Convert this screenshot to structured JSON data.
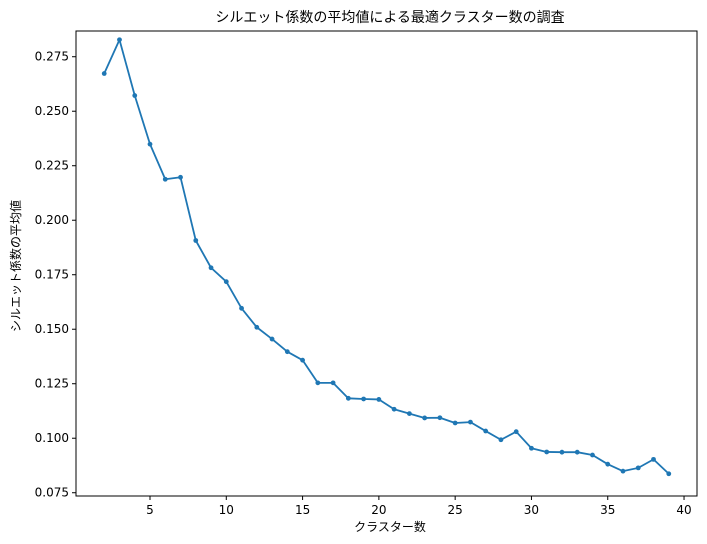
{
  "chart_data": {
    "type": "line",
    "title": "シルエット係数の平均値による最適クラスター数の調査",
    "xlabel": "クラスター数",
    "ylabel": "シルエット係数の平均値",
    "xlim": [
      0.15,
      40.85
    ],
    "ylim": [
      0.0735,
      0.2868
    ],
    "xticks": [
      5,
      10,
      15,
      20,
      25,
      30,
      35,
      40
    ],
    "yticks": [
      0.075,
      0.1,
      0.125,
      0.15,
      0.175,
      0.2,
      0.225,
      0.25,
      0.275
    ],
    "ytick_labels": [
      "0.075",
      "0.100",
      "0.125",
      "0.150",
      "0.175",
      "0.200",
      "0.225",
      "0.250",
      "0.275"
    ],
    "grid": false,
    "line_color": "#1f77b4",
    "x": [
      2,
      3,
      4,
      5,
      6,
      7,
      8,
      9,
      10,
      11,
      12,
      13,
      14,
      15,
      16,
      17,
      18,
      19,
      20,
      21,
      22,
      23,
      24,
      25,
      26,
      27,
      28,
      29,
      30,
      31,
      32,
      33,
      34,
      35,
      36,
      37,
      38,
      39
    ],
    "y": [
      0.2673,
      0.2828,
      0.2572,
      0.2349,
      0.2188,
      0.2197,
      0.1907,
      0.1782,
      0.1718,
      0.1596,
      0.1509,
      0.1455,
      0.1397,
      0.1358,
      0.1254,
      0.1254,
      0.1183,
      0.118,
      0.1178,
      0.1133,
      0.1113,
      0.1093,
      0.1094,
      0.107,
      0.1074,
      0.1033,
      0.0993,
      0.103,
      0.0954,
      0.0937,
      0.0936,
      0.0936,
      0.0923,
      0.0881,
      0.0849,
      0.0864,
      0.0903,
      0.0837
    ]
  }
}
